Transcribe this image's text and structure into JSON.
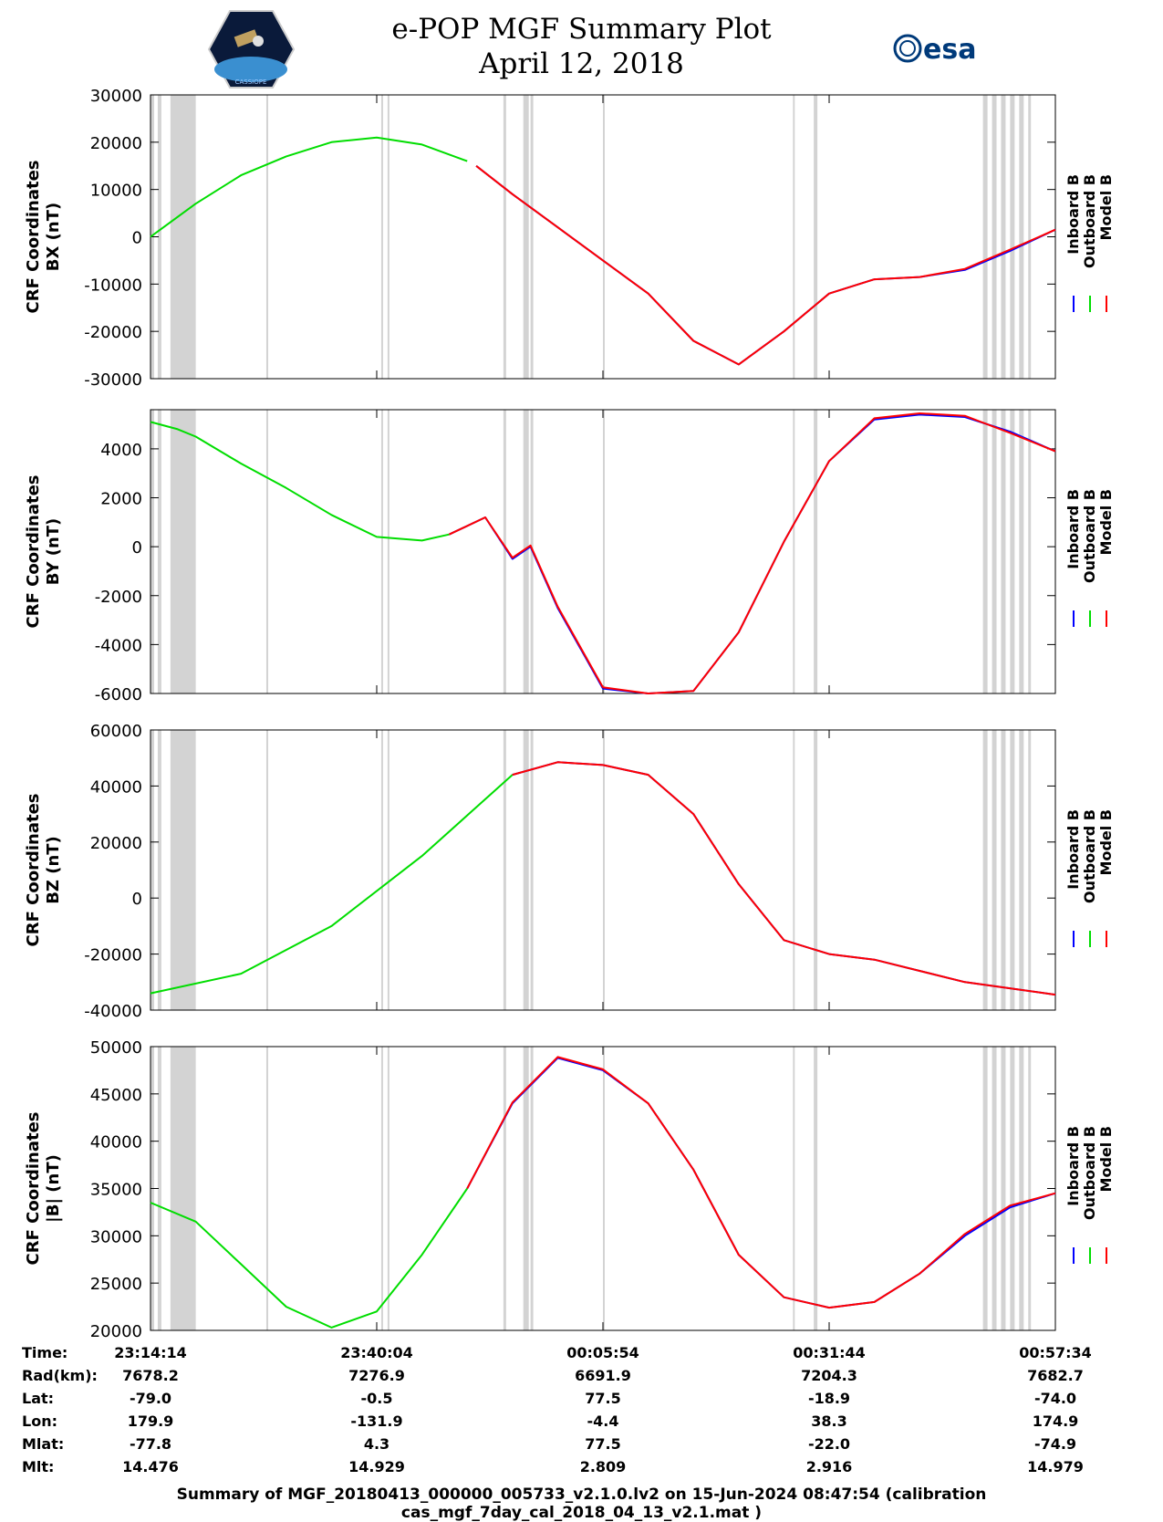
{
  "header": {
    "title_line1": "e-POP MGF Summary Plot",
    "title_line2": "April 12, 2018",
    "left_logo_text": "CASSIOPE",
    "right_logo_text": "esa"
  },
  "colors": {
    "inboard": "#0000ff",
    "outboard": "#00dd00",
    "model": "#ff0000",
    "gap_shade": "#d3d3d3"
  },
  "chart_data": [
    {
      "type": "line",
      "ylabel_line1": "CRF Coordinates",
      "ylabel_line2": "BX (nT)",
      "ylim": [
        -30000,
        30000
      ],
      "yticks": [
        "30000",
        "20000",
        "10000",
        "0",
        "-10000",
        "-20000",
        "-30000"
      ],
      "legend": [
        "Inboard B",
        "Outboard B",
        "Model B"
      ],
      "series": [
        {
          "name": "Outboard B",
          "x": [
            0,
            0.05,
            0.1,
            0.15,
            0.2,
            0.25,
            0.3,
            0.35
          ],
          "values": [
            0,
            7000,
            13000,
            17000,
            20000,
            21000,
            19500,
            16000
          ]
        },
        {
          "name": "Inboard B",
          "x": [
            0.36,
            0.4,
            0.45,
            0.5,
            0.55,
            0.6,
            0.65,
            0.7,
            0.75,
            0.8,
            0.85,
            0.9,
            0.95,
            1.0
          ],
          "values": [
            15000,
            9000,
            2000,
            -5000,
            -12000,
            -22000,
            -27000,
            -20000,
            -12000,
            -9000,
            -8500,
            -7000,
            -3000,
            1500
          ]
        },
        {
          "name": "Model B",
          "x": [
            0.36,
            0.4,
            0.45,
            0.5,
            0.55,
            0.6,
            0.65,
            0.7,
            0.75,
            0.8,
            0.85,
            0.9,
            0.95,
            1.0
          ],
          "values": [
            15000,
            9000,
            2000,
            -5000,
            -12000,
            -22000,
            -27000,
            -20000,
            -12000,
            -9000,
            -8500,
            -6800,
            -2700,
            1500
          ]
        }
      ]
    },
    {
      "type": "line",
      "ylabel_line1": "CRF Coordinates",
      "ylabel_line2": "BY (nT)",
      "ylim": [
        -6000,
        5600
      ],
      "yticks": [
        "4000",
        "2000",
        "0",
        "-2000",
        "-4000",
        "-6000"
      ],
      "legend": [
        "Inboard B",
        "Outboard B",
        "Model B"
      ],
      "series": [
        {
          "name": "Outboard B",
          "x": [
            0,
            0.03,
            0.05,
            0.1,
            0.15,
            0.2,
            0.25,
            0.3,
            0.33
          ],
          "values": [
            5100,
            4800,
            4500,
            3400,
            2400,
            1300,
            400,
            250,
            500
          ]
        },
        {
          "name": "Inboard B",
          "x": [
            0.33,
            0.37,
            0.4,
            0.42,
            0.45,
            0.5,
            0.55,
            0.6,
            0.65,
            0.7,
            0.75,
            0.8,
            0.85,
            0.9,
            0.95,
            1.0
          ],
          "values": [
            500,
            1200,
            -500,
            0,
            -2500,
            -5800,
            -6000,
            -5900,
            -3500,
            200,
            3500,
            5200,
            5400,
            5300,
            4700,
            3900
          ]
        },
        {
          "name": "Model B",
          "x": [
            0.33,
            0.37,
            0.4,
            0.42,
            0.45,
            0.5,
            0.55,
            0.6,
            0.65,
            0.7,
            0.75,
            0.8,
            0.85,
            0.9,
            0.95,
            1.0
          ],
          "values": [
            500,
            1200,
            -450,
            50,
            -2450,
            -5750,
            -6000,
            -5900,
            -3500,
            200,
            3500,
            5250,
            5450,
            5350,
            4650,
            3900
          ]
        }
      ]
    },
    {
      "type": "line",
      "ylabel_line1": "CRF Coordinates",
      "ylabel_line2": "BZ (nT)",
      "ylim": [
        -40000,
        60000
      ],
      "yticks": [
        "60000",
        "40000",
        "20000",
        "0",
        "-20000",
        "-40000"
      ],
      "legend": [
        "Inboard B",
        "Outboard B",
        "Model B"
      ],
      "series": [
        {
          "name": "Outboard B",
          "x": [
            0,
            0.1,
            0.2,
            0.3,
            0.4
          ],
          "values": [
            -34000,
            -27000,
            -10000,
            15000,
            44000
          ]
        },
        {
          "name": "Inboard B",
          "x": [
            0.4,
            0.45,
            0.5,
            0.55,
            0.6,
            0.65,
            0.7,
            0.75,
            0.8,
            0.9,
            1.0
          ],
          "values": [
            44000,
            48500,
            47500,
            44000,
            30000,
            5000,
            -15000,
            -20000,
            -22000,
            -30000,
            -34500
          ]
        },
        {
          "name": "Model B",
          "x": [
            0.4,
            0.45,
            0.5,
            0.55,
            0.6,
            0.65,
            0.7,
            0.75,
            0.8,
            0.9,
            1.0
          ],
          "values": [
            44000,
            48500,
            47500,
            44000,
            30000,
            5000,
            -15000,
            -20000,
            -22000,
            -30000,
            -34500
          ]
        }
      ]
    },
    {
      "type": "line",
      "ylabel_line1": "CRF Coordinates",
      "ylabel_line2": "|B| (nT)",
      "ylim": [
        20000,
        50000
      ],
      "yticks": [
        "50000",
        "45000",
        "40000",
        "35000",
        "30000",
        "25000",
        "20000"
      ],
      "legend": [
        "Inboard B",
        "Outboard B",
        "Model B"
      ],
      "xtick_times": [
        "23:14:14",
        "23:40:04",
        "00:05:54",
        "00:31:44",
        "00:57:34"
      ],
      "series": [
        {
          "name": "Outboard B",
          "x": [
            0,
            0.05,
            0.1,
            0.15,
            0.2,
            0.25,
            0.3,
            0.35
          ],
          "values": [
            33500,
            31500,
            27000,
            22500,
            20300,
            22000,
            28000,
            35000
          ]
        },
        {
          "name": "Inboard B",
          "x": [
            0.35,
            0.4,
            0.45,
            0.5,
            0.55,
            0.6,
            0.65,
            0.7,
            0.75,
            0.8,
            0.85,
            0.9,
            0.95,
            1.0
          ],
          "values": [
            35000,
            44000,
            48800,
            47500,
            44000,
            37000,
            28000,
            23500,
            22400,
            23000,
            26000,
            30000,
            33000,
            34500
          ]
        },
        {
          "name": "Model B",
          "x": [
            0.35,
            0.4,
            0.45,
            0.5,
            0.55,
            0.6,
            0.65,
            0.7,
            0.75,
            0.8,
            0.85,
            0.9,
            0.95,
            1.0
          ],
          "values": [
            35000,
            44100,
            48900,
            47600,
            44000,
            37000,
            28000,
            23500,
            22400,
            23000,
            26000,
            30200,
            33200,
            34500
          ]
        }
      ]
    }
  ],
  "gap_bands": [
    [
      0.0,
      0.004
    ],
    [
      0.008,
      0.012
    ],
    [
      0.022,
      0.05
    ],
    [
      0.128,
      0.13
    ],
    [
      0.128,
      0.13
    ],
    [
      0.255,
      0.257
    ],
    [
      0.262,
      0.264
    ],
    [
      0.39,
      0.393
    ],
    [
      0.412,
      0.418
    ],
    [
      0.42,
      0.423
    ],
    [
      0.5,
      0.502
    ],
    [
      0.71,
      0.712
    ],
    [
      0.733,
      0.737
    ],
    [
      0.92,
      0.925
    ],
    [
      0.93,
      0.935
    ],
    [
      0.94,
      0.945
    ],
    [
      0.95,
      0.955
    ],
    [
      0.96,
      0.965
    ],
    [
      0.97,
      0.973
    ]
  ],
  "orbit_table": {
    "labels": [
      "Time:",
      "Rad(km):",
      "Lat:",
      "Lon:",
      "Mlat:",
      "Mlt:"
    ],
    "columns": [
      [
        "23:14:14",
        "7678.2",
        "-79.0",
        "179.9",
        "-77.8",
        "14.476"
      ],
      [
        "23:40:04",
        "7276.9",
        "-0.5",
        "-131.9",
        "4.3",
        "14.929"
      ],
      [
        "00:05:54",
        "6691.9",
        "77.5",
        "-4.4",
        "77.5",
        "2.809"
      ],
      [
        "00:31:44",
        "7204.3",
        "-18.9",
        "38.3",
        "-22.0",
        "2.916"
      ],
      [
        "00:57:34",
        "7682.7",
        "-74.0",
        "174.9",
        "-74.9",
        "14.979"
      ]
    ]
  },
  "footer": "Summary of MGF_20180413_000000_005733_v2.1.0.lv2 on 15-Jun-2024 08:47:54 (calibration cas_mgf_7day_cal_2018_04_13_v2.1.mat )"
}
